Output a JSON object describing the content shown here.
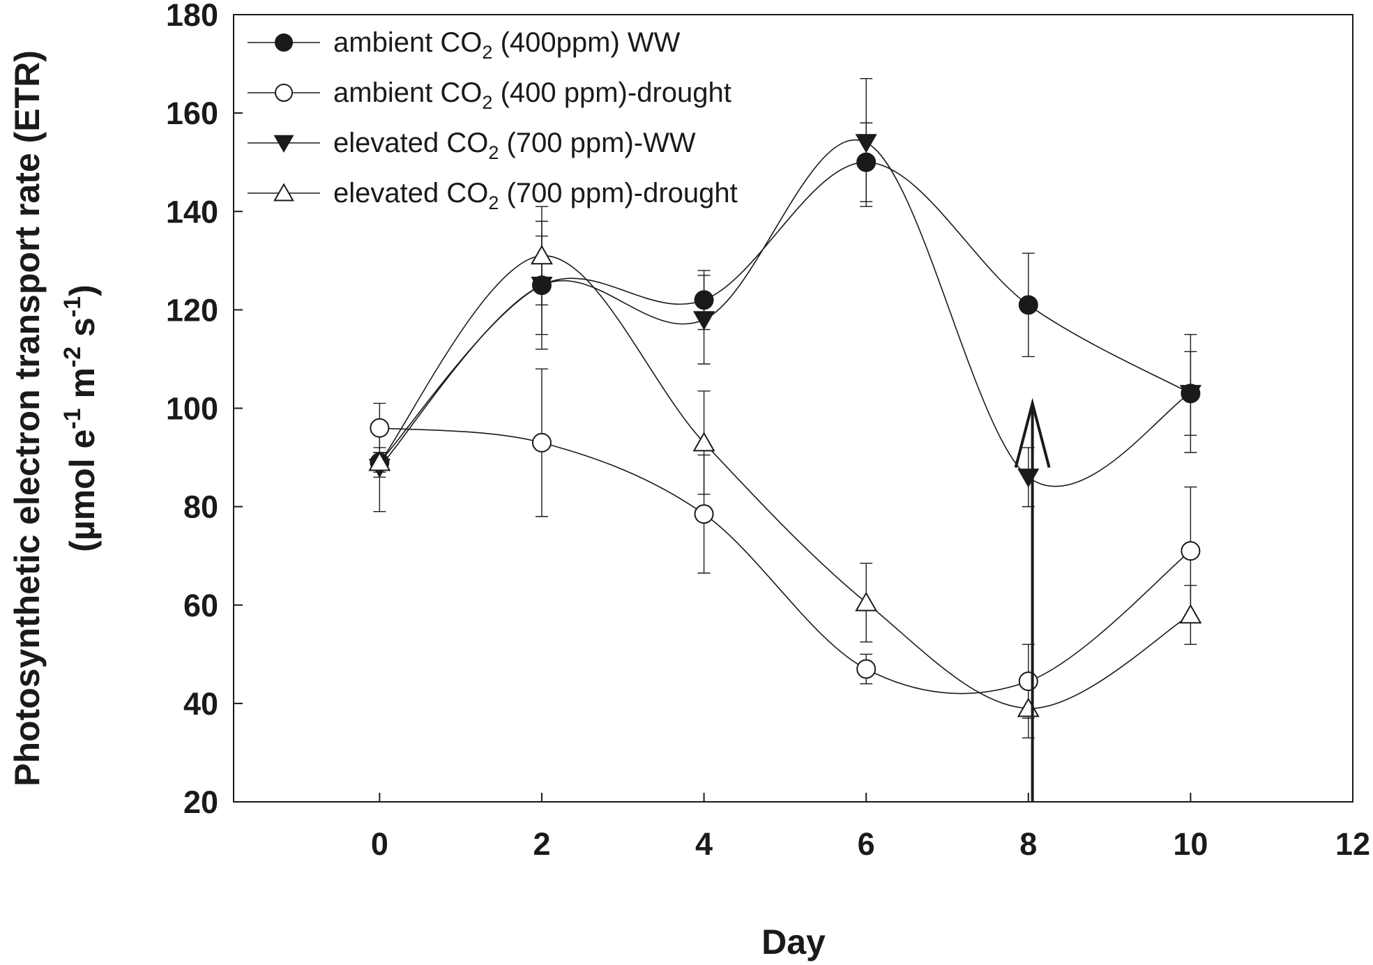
{
  "chart_data": {
    "type": "line",
    "title": "",
    "xlabel": "Day",
    "ylabel_line1": "Photosynthetic electron transport rate (ETR)",
    "ylabel_line2": {
      "open": "(µmol e",
      "sup1": "-1",
      "mid1": " m",
      "sup2": "-2",
      "mid2": " s",
      "sup3": "-1",
      "close": ")"
    },
    "xlim": [
      -1.8,
      12
    ],
    "ylim": [
      20,
      180
    ],
    "x_ticks": [
      0,
      2,
      4,
      6,
      8,
      10,
      12
    ],
    "y_ticks": [
      20,
      40,
      60,
      80,
      100,
      120,
      140,
      160,
      180
    ],
    "x": [
      0,
      2,
      4,
      6,
      8,
      10
    ],
    "series": [
      {
        "name": "ambient CO2 (400ppm) WW",
        "legend": {
          "pre": "ambient CO",
          "sub": "2",
          "post": " (400ppm) WW"
        },
        "marker": "circle-filled",
        "values": [
          89,
          125,
          122,
          150,
          121,
          103
        ],
        "errors": [
          2,
          13,
          6,
          8,
          10.5,
          12
        ]
      },
      {
        "name": "ambient CO2 (400 ppm)-drought",
        "legend": {
          "pre": "ambient CO",
          "sub": "2",
          "post": " (400 ppm)-drought"
        },
        "marker": "circle-open",
        "values": [
          96,
          93,
          78.5,
          47,
          44.5,
          71
        ],
        "errors": [
          5,
          15,
          12,
          3,
          7.5,
          13
        ]
      },
      {
        "name": "elevated CO2 (700 ppm)-WW",
        "legend": {
          "pre": "elevated CO",
          "sub": "2",
          "post": " (700 ppm)-WW"
        },
        "marker": "triangle-down-filled",
        "values": [
          88,
          125,
          118,
          154,
          86,
          103
        ],
        "errors": [
          9,
          10,
          9,
          13,
          6,
          8.5
        ]
      },
      {
        "name": "elevated CO2 (700 ppm)-drought",
        "legend": {
          "pre": "elevated CO",
          "sub": "2",
          "post": " (700 ppm)-drought"
        },
        "marker": "triangle-up-open",
        "values": [
          89,
          131,
          93,
          60.5,
          39,
          58
        ],
        "errors": [
          3,
          10,
          10.5,
          8,
          6,
          6
        ]
      }
    ],
    "annotation": {
      "type": "arrow",
      "x": 8.05,
      "from_y": 20,
      "to_y": 101,
      "description": "upward arrow marking re-watering on day 8"
    },
    "grid": false,
    "legend_position": "top-left"
  }
}
